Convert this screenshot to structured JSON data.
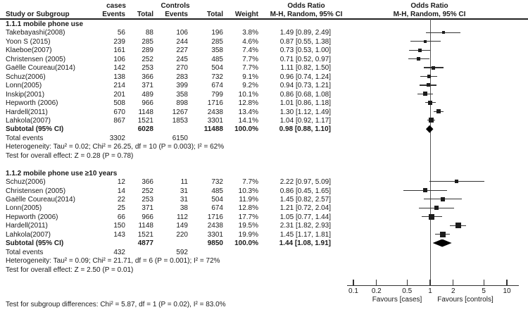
{
  "header": {
    "study_col": "Study or Subgroup",
    "cases_group": "cases",
    "controls_group": "Controls",
    "events_label": "Events",
    "total_label": "Total",
    "weight_label": "Weight",
    "or_label": "Odds Ratio",
    "mh_label": "M-H, Random, 95% CI"
  },
  "chart_data": {
    "type": "forest_plot",
    "effect_measure": "Odds Ratio",
    "method": "M-H, Random, 95% CI",
    "x_scale": "log10",
    "x_ticks": [
      0.1,
      0.2,
      0.5,
      1,
      2,
      5,
      10
    ],
    "x_tick_labels": [
      "0.1",
      "0.2",
      "0.5",
      "1",
      "2",
      "5",
      "10"
    ],
    "null_line": 1,
    "axis": {
      "favours_left": "Favours [cases]",
      "favours_right": "Favours [controls]"
    },
    "footer": "Test for subgroup differences: Chi² = 5.87, df = 1 (P = 0.02), I² = 83.0%",
    "subgroups": [
      {
        "title": "1.1.1 mobile phone use",
        "studies": [
          {
            "name": "Takebayashi(2008)",
            "cases_events": 56,
            "cases_total": 88,
            "control_events": 106,
            "control_total": 196,
            "weight": "3.8%",
            "weight_pct": 3.8,
            "or": 1.49,
            "ci_low": 0.89,
            "ci_high": 2.49,
            "or_text": "1.49 [0.89, 2.49]"
          },
          {
            "name": "Yoon S (2015)",
            "cases_events": 239,
            "cases_total": 285,
            "control_events": 244,
            "control_total": 285,
            "weight": "4.6%",
            "weight_pct": 4.6,
            "or": 0.87,
            "ci_low": 0.55,
            "ci_high": 1.38,
            "or_text": "0.87 [0.55, 1.38]"
          },
          {
            "name": "Klaeboe(2007)",
            "cases_events": 161,
            "cases_total": 289,
            "control_events": 227,
            "control_total": 358,
            "weight": "7.4%",
            "weight_pct": 7.4,
            "or": 0.73,
            "ci_low": 0.53,
            "ci_high": 1.0,
            "or_text": "0.73 [0.53, 1.00]"
          },
          {
            "name": "Christensen (2005)",
            "cases_events": 106,
            "cases_total": 252,
            "control_events": 245,
            "control_total": 485,
            "weight": "7.7%",
            "weight_pct": 7.7,
            "or": 0.71,
            "ci_low": 0.52,
            "ci_high": 0.97,
            "or_text": "0.71 [0.52, 0.97]"
          },
          {
            "name": "Gaëlle Coureau(2014)",
            "cases_events": 142,
            "cases_total": 253,
            "control_events": 270,
            "control_total": 504,
            "weight": "7.7%",
            "weight_pct": 7.7,
            "or": 1.11,
            "ci_low": 0.82,
            "ci_high": 1.5,
            "or_text": "1.11 [0.82, 1.50]"
          },
          {
            "name": "Schuz(2006)",
            "cases_events": 138,
            "cases_total": 366,
            "control_events": 283,
            "control_total": 732,
            "weight": "9.1%",
            "weight_pct": 9.1,
            "or": 0.96,
            "ci_low": 0.74,
            "ci_high": 1.24,
            "or_text": "0.96 [0.74, 1.24]"
          },
          {
            "name": "Lonn(2005)",
            "cases_events": 214,
            "cases_total": 371,
            "control_events": 399,
            "control_total": 674,
            "weight": "9.2%",
            "weight_pct": 9.2,
            "or": 0.94,
            "ci_low": 0.73,
            "ci_high": 1.21,
            "or_text": "0.94 [0.73, 1.21]"
          },
          {
            "name": "Inskip(2001)",
            "cases_events": 201,
            "cases_total": 489,
            "control_events": 358,
            "control_total": 799,
            "weight": "10.1%",
            "weight_pct": 10.1,
            "or": 0.86,
            "ci_low": 0.68,
            "ci_high": 1.08,
            "or_text": "0.86 [0.68, 1.08]"
          },
          {
            "name": "Hepworth (2006)",
            "cases_events": 508,
            "cases_total": 966,
            "control_events": 898,
            "control_total": 1716,
            "weight": "12.8%",
            "weight_pct": 12.8,
            "or": 1.01,
            "ci_low": 0.86,
            "ci_high": 1.18,
            "or_text": "1.01 [0.86, 1.18]"
          },
          {
            "name": "Hardell(2011)",
            "cases_events": 670,
            "cases_total": 1148,
            "control_events": 1267,
            "control_total": 2438,
            "weight": "13.4%",
            "weight_pct": 13.4,
            "or": 1.3,
            "ci_low": 1.12,
            "ci_high": 1.49,
            "or_text": "1.30 [1.12, 1.49]"
          },
          {
            "name": "Lahkola(2007)",
            "cases_events": 867,
            "cases_total": 1521,
            "control_events": 1853,
            "control_total": 3301,
            "weight": "14.1%",
            "weight_pct": 14.1,
            "or": 1.04,
            "ci_low": 0.92,
            "ci_high": 1.17,
            "or_text": "1.04 [0.92, 1.17]"
          }
        ],
        "subtotal": {
          "label": "Subtotal (95% CI)",
          "cases_total": 6028,
          "control_total": 11488,
          "weight": "100.0%",
          "or": 0.98,
          "ci_low": 0.88,
          "ci_high": 1.1,
          "or_text": "0.98 [0.88, 1.10]"
        },
        "total_events": {
          "label": "Total events",
          "cases": 3302,
          "controls": 6150
        },
        "heterogeneity": "Heterogeneity: Tau² = 0.02; Chi² = 26.25, df = 10 (P = 0.003); I² = 62%",
        "overall_effect": "Test for overall effect: Z = 0.28 (P = 0.78)"
      },
      {
        "title": "1.1.2 mobile phone use ≥10 years",
        "studies": [
          {
            "name": "Schuz(2006)",
            "cases_events": 12,
            "cases_total": 366,
            "control_events": 11,
            "control_total": 732,
            "weight": "7.7%",
            "weight_pct": 7.7,
            "or": 2.22,
            "ci_low": 0.97,
            "ci_high": 5.09,
            "or_text": "2.22 [0.97, 5.09]"
          },
          {
            "name": "Christensen (2005)",
            "cases_events": 14,
            "cases_total": 252,
            "control_events": 31,
            "control_total": 485,
            "weight": "10.3%",
            "weight_pct": 10.3,
            "or": 0.86,
            "ci_low": 0.45,
            "ci_high": 1.65,
            "or_text": "0.86 [0.45, 1.65]"
          },
          {
            "name": "Gaëlle Coureau(2014)",
            "cases_events": 22,
            "cases_total": 253,
            "control_events": 31,
            "control_total": 504,
            "weight": "11.9%",
            "weight_pct": 11.9,
            "or": 1.45,
            "ci_low": 0.82,
            "ci_high": 2.57,
            "or_text": "1.45 [0.82, 2.57]"
          },
          {
            "name": "Lonn(2005)",
            "cases_events": 25,
            "cases_total": 371,
            "control_events": 38,
            "control_total": 674,
            "weight": "12.8%",
            "weight_pct": 12.8,
            "or": 1.21,
            "ci_low": 0.72,
            "ci_high": 2.04,
            "or_text": "1.21 [0.72, 2.04]"
          },
          {
            "name": "Hepworth (2006)",
            "cases_events": 66,
            "cases_total": 966,
            "control_events": 112,
            "control_total": 1716,
            "weight": "17.7%",
            "weight_pct": 17.7,
            "or": 1.05,
            "ci_low": 0.77,
            "ci_high": 1.44,
            "or_text": "1.05 [0.77, 1.44]"
          },
          {
            "name": "Hardell(2011)",
            "cases_events": 150,
            "cases_total": 1148,
            "control_events": 149,
            "control_total": 2438,
            "weight": "19.5%",
            "weight_pct": 19.5,
            "or": 2.31,
            "ci_low": 1.82,
            "ci_high": 2.93,
            "or_text": "2.31 [1.82, 2.93]"
          },
          {
            "name": "Lahkola(2007)",
            "cases_events": 143,
            "cases_total": 1521,
            "control_events": 220,
            "control_total": 3301,
            "weight": "19.9%",
            "weight_pct": 19.9,
            "or": 1.45,
            "ci_low": 1.17,
            "ci_high": 1.81,
            "or_text": "1.45 [1.17, 1.81]"
          }
        ],
        "subtotal": {
          "label": "Subtotal (95% CI)",
          "cases_total": 4877,
          "control_total": 9850,
          "weight": "100.0%",
          "or": 1.44,
          "ci_low": 1.08,
          "ci_high": 1.91,
          "or_text": "1.44 [1.08, 1.91]"
        },
        "total_events": {
          "label": "Total events",
          "cases": 432,
          "controls": 592
        },
        "heterogeneity": "Heterogeneity: Tau² = 0.09; Chi² = 21.71, df = 6 (P = 0.001); I² = 72%",
        "overall_effect": "Test for overall effect: Z = 2.50 (P = 0.01)"
      }
    ]
  }
}
